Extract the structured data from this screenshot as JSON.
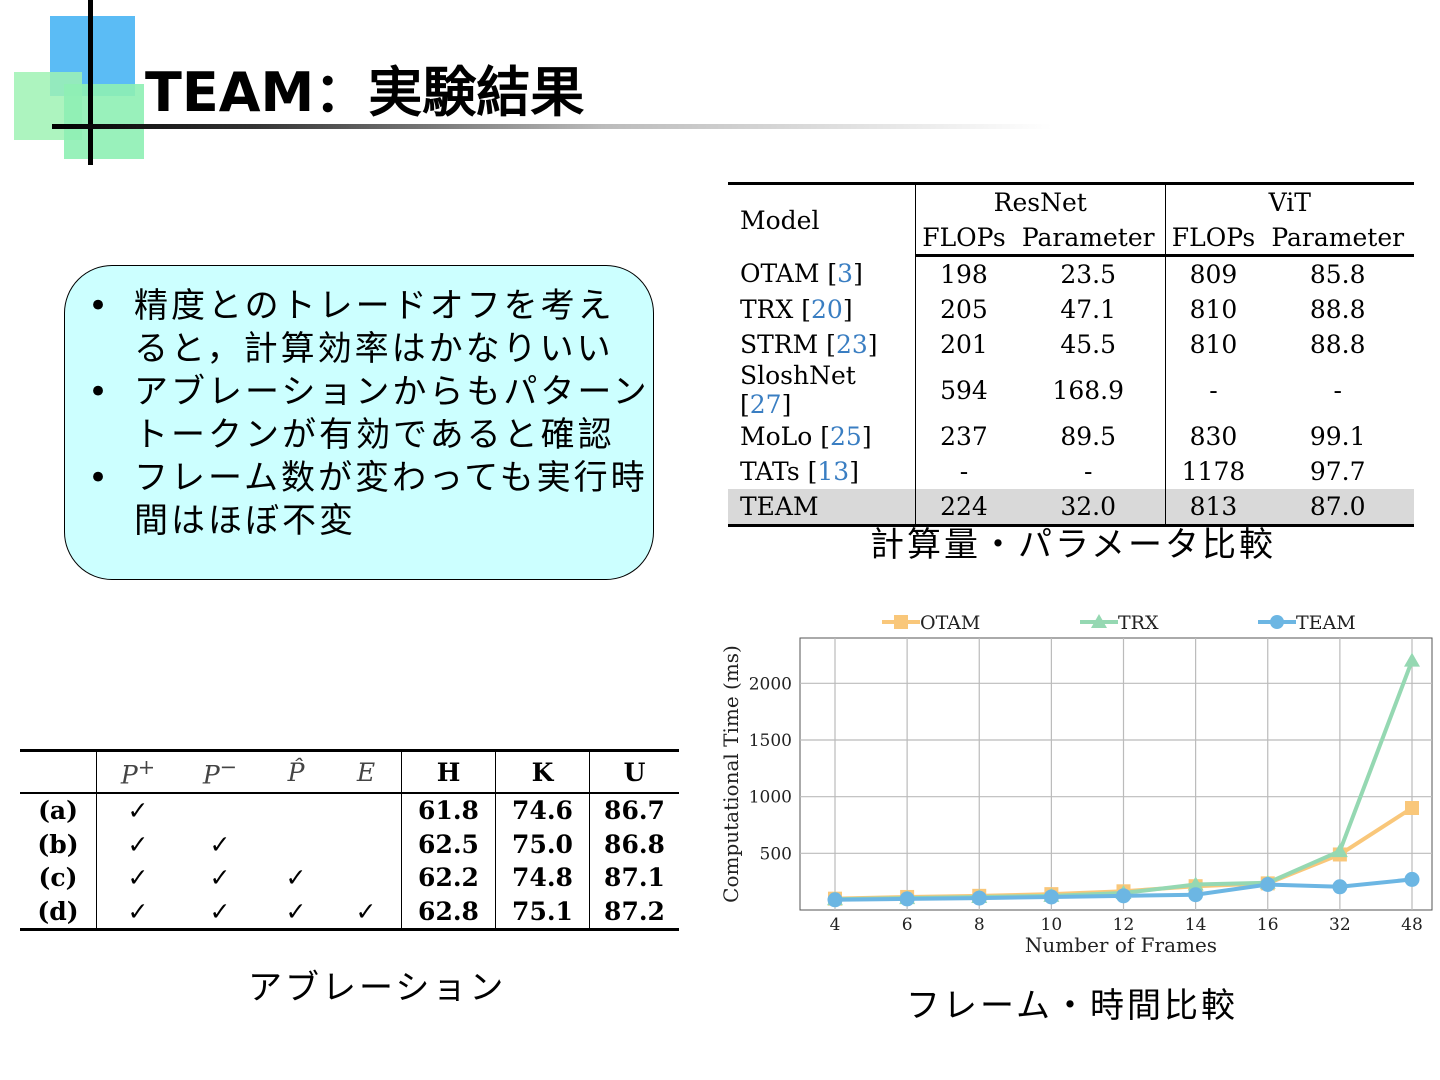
{
  "slide": {
    "title": "TEAM：実験結果",
    "bullets": [
      "精度とのトレードオフを考えると，計算効率はかなりいい",
      "アブレーションからもパターントークンが有効であると確認",
      "フレーム数が変わっても実行時間はほぼ不変"
    ],
    "bullet_symbol": "•",
    "captions": {
      "compute": "計算量・パラメータ比較",
      "ablation": "アブレーション",
      "frames": "フレーム・時間比較"
    },
    "colors": {
      "box_bg": "#ccffff",
      "accent_blue": "#5bbcf5",
      "accent_green": "#9ff2b4"
    }
  },
  "compute_table": {
    "headers": {
      "model": "Model",
      "group1": "ResNet",
      "group2": "ViT",
      "flops": "FLOPs",
      "params": "Parameter"
    },
    "rows": [
      {
        "model": "OTAM [",
        "ref": "3",
        "end": "]",
        "r_flops": "198",
        "r_params": "23.5",
        "v_flops": "809",
        "v_params": "85.8"
      },
      {
        "model": "TRX [",
        "ref": "20",
        "end": "]",
        "r_flops": "205",
        "r_params": "47.1",
        "v_flops": "810",
        "v_params": "88.8"
      },
      {
        "model": "STRM [",
        "ref": "23",
        "end": "]",
        "r_flops": "201",
        "r_params": "45.5",
        "v_flops": "810",
        "v_params": "88.8"
      },
      {
        "model": "SloshNet [",
        "ref": "27",
        "end": "]",
        "r_flops": "594",
        "r_params": "168.9",
        "v_flops": "-",
        "v_params": "-"
      },
      {
        "model": "MoLo [",
        "ref": "25",
        "end": "]",
        "r_flops": "237",
        "r_params": "89.5",
        "v_flops": "830",
        "v_params": "99.1"
      },
      {
        "model": "TATs [",
        "ref": "13",
        "end": "]",
        "r_flops": "-",
        "r_params": "-",
        "v_flops": "1178",
        "v_params": "97.7"
      },
      {
        "model": "TEAM",
        "ref": "",
        "end": "",
        "r_flops": "224",
        "r_params": "32.0",
        "v_flops": "813",
        "v_params": "87.0"
      }
    ]
  },
  "ablation_table": {
    "headers": [
      "",
      "P+",
      "P−",
      "P̂",
      "E",
      "H",
      "K",
      "U"
    ],
    "rows": [
      [
        "(a)",
        "✓",
        "",
        "",
        "",
        "61.8",
        "74.6",
        "86.7"
      ],
      [
        "(b)",
        "✓",
        "✓",
        "",
        "",
        "62.5",
        "75.0",
        "86.8"
      ],
      [
        "(c)",
        "✓",
        "✓",
        "✓",
        "",
        "62.2",
        "74.8",
        "87.1"
      ],
      [
        "(d)",
        "✓",
        "✓",
        "✓",
        "✓",
        "62.8",
        "75.1",
        "87.2"
      ]
    ]
  },
  "chart_data": {
    "type": "line",
    "xlabel": "Number of Frames",
    "ylabel": "Computational Time (ms)",
    "categories": [
      "4",
      "6",
      "8",
      "10",
      "12",
      "14",
      "16",
      "32",
      "48"
    ],
    "yticks": [
      500,
      1000,
      1500,
      2000
    ],
    "ylim": [
      0,
      2400
    ],
    "grid": true,
    "legend_position": "top",
    "series": [
      {
        "name": "OTAM",
        "color": "#f9c77a",
        "marker": "square",
        "values": [
          100,
          115,
          125,
          140,
          165,
          210,
          235,
          490,
          900
        ]
      },
      {
        "name": "TRX",
        "color": "#95d8b2",
        "marker": "triangle",
        "values": [
          95,
          105,
          115,
          125,
          150,
          225,
          240,
          520,
          2200
        ]
      },
      {
        "name": "TEAM",
        "color": "#6cb6e3",
        "marker": "circle",
        "values": [
          90,
          98,
          105,
          115,
          125,
          135,
          225,
          205,
          270
        ]
      }
    ]
  }
}
